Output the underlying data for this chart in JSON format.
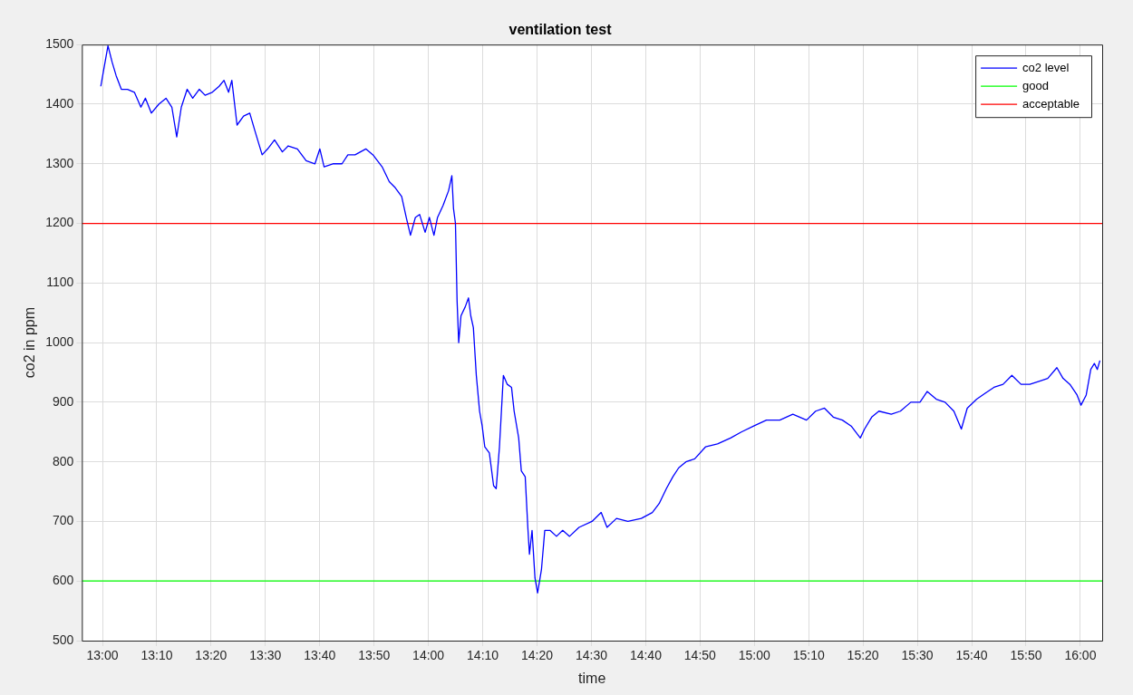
{
  "chart_data": {
    "type": "line",
    "title": "ventilation test",
    "xlabel": "time",
    "ylabel": "co2 in ppm",
    "xlim": [
      12.937,
      16.067
    ],
    "xticks": [
      {
        "value": 13,
        "label": "13:00"
      },
      {
        "value": 13.1667,
        "label": "13:10"
      },
      {
        "value": 13.3333,
        "label": "13:20"
      },
      {
        "value": 13.5,
        "label": "13:30"
      },
      {
        "value": 13.6667,
        "label": "13:40"
      },
      {
        "value": 13.8333,
        "label": "13:50"
      },
      {
        "value": 14,
        "label": "14:00"
      },
      {
        "value": 14.1667,
        "label": "14:10"
      },
      {
        "value": 14.3333,
        "label": "14:20"
      },
      {
        "value": 14.5,
        "label": "14:30"
      },
      {
        "value": 14.6667,
        "label": "14:40"
      },
      {
        "value": 14.8333,
        "label": "14:50"
      },
      {
        "value": 15,
        "label": "15:00"
      },
      {
        "value": 15.1667,
        "label": "15:10"
      },
      {
        "value": 15.3333,
        "label": "15:20"
      },
      {
        "value": 15.5,
        "label": "15:30"
      },
      {
        "value": 15.6667,
        "label": "15:40"
      },
      {
        "value": 15.8333,
        "label": "15:50"
      },
      {
        "value": 16,
        "label": "16:00"
      }
    ],
    "ylim": [
      500,
      1500
    ],
    "yticks": [
      500,
      600,
      700,
      800,
      900,
      1000,
      1100,
      1200,
      1300,
      1400,
      1500
    ],
    "grid": true,
    "legend": "top right",
    "marker": "none",
    "line_style": "solid",
    "series": [
      {
        "name": "co2 level",
        "color": "#0000ff",
        "x": [
          12.995,
          13.003,
          13.017,
          13.03,
          13.042,
          13.058,
          13.077,
          13.098,
          13.118,
          13.132,
          13.15,
          13.173,
          13.195,
          13.213,
          13.228,
          13.242,
          13.26,
          13.277,
          13.297,
          13.315,
          13.337,
          13.358,
          13.373,
          13.387,
          13.397,
          13.413,
          13.433,
          13.452,
          13.468,
          13.49,
          13.507,
          13.528,
          13.552,
          13.57,
          13.598,
          13.625,
          13.652,
          13.667,
          13.68,
          13.707,
          13.735,
          13.753,
          13.775,
          13.808,
          13.83,
          13.858,
          13.88,
          13.898,
          13.918,
          13.932,
          13.945,
          13.96,
          13.973,
          13.99,
          14.003,
          14.017,
          14.028,
          14.045,
          14.062,
          14.072,
          14.077,
          14.083,
          14.088,
          14.093,
          14.1,
          14.113,
          14.123,
          14.13,
          14.138,
          14.147,
          14.157,
          14.165,
          14.173,
          14.187,
          14.2,
          14.208,
          14.218,
          14.23,
          14.242,
          14.255,
          14.263,
          14.277,
          14.285,
          14.297,
          14.305,
          14.31,
          14.318,
          14.327,
          14.335,
          14.347,
          14.357,
          14.373,
          14.393,
          14.412,
          14.433,
          14.462,
          14.502,
          14.53,
          14.548,
          14.577,
          14.612,
          14.653,
          14.687,
          14.708,
          14.73,
          14.75,
          14.768,
          14.79,
          14.817,
          14.85,
          14.887,
          14.927,
          14.96,
          14.998,
          15.037,
          15.078,
          15.118,
          15.16,
          15.188,
          15.215,
          15.242,
          15.27,
          15.297,
          15.325,
          15.338,
          15.36,
          15.382,
          15.42,
          15.448,
          15.48,
          15.508,
          15.53,
          15.558,
          15.585,
          15.612,
          15.635,
          15.653,
          15.682,
          15.708,
          15.735,
          15.763,
          15.79,
          15.818,
          15.845,
          15.873,
          15.9,
          15.928,
          15.947,
          15.968,
          15.99,
          16.002,
          16.018,
          16.032,
          16.043,
          16.052,
          16.06
        ],
        "values": [
          1430,
          1455,
          1498,
          1470,
          1448,
          1425,
          1425,
          1420,
          1395,
          1410,
          1385,
          1400,
          1410,
          1395,
          1345,
          1395,
          1425,
          1410,
          1425,
          1415,
          1420,
          1430,
          1440,
          1420,
          1440,
          1365,
          1380,
          1385,
          1355,
          1315,
          1325,
          1340,
          1320,
          1330,
          1325,
          1305,
          1300,
          1325,
          1295,
          1300,
          1300,
          1315,
          1315,
          1325,
          1315,
          1295,
          1270,
          1260,
          1245,
          1210,
          1180,
          1210,
          1215,
          1185,
          1210,
          1180,
          1210,
          1230,
          1255,
          1280,
          1225,
          1200,
          1070,
          1000,
          1045,
          1060,
          1075,
          1045,
          1025,
          945,
          885,
          860,
          825,
          815,
          760,
          755,
          825,
          945,
          930,
          925,
          885,
          840,
          785,
          775,
          690,
          645,
          685,
          605,
          580,
          620,
          685,
          685,
          675,
          685,
          675,
          690,
          700,
          715,
          690,
          705,
          700,
          705,
          715,
          730,
          755,
          775,
          790,
          800,
          805,
          825,
          830,
          840,
          850,
          860,
          870,
          870,
          880,
          870,
          885,
          890,
          875,
          870,
          860,
          840,
          855,
          875,
          885,
          880,
          885,
          900,
          900,
          918,
          905,
          900,
          885,
          855,
          890,
          905,
          915,
          925,
          930,
          945,
          930,
          930,
          935,
          940,
          958,
          940,
          930,
          912,
          895,
          912,
          955,
          965,
          955,
          970
        ]
      }
    ],
    "ref_lines": [
      {
        "axis": "y",
        "value": 600,
        "label": "good",
        "color": "#00ff00"
      },
      {
        "axis": "y",
        "value": 1200,
        "label": "acceptable",
        "color": "#ff0000"
      }
    ]
  }
}
